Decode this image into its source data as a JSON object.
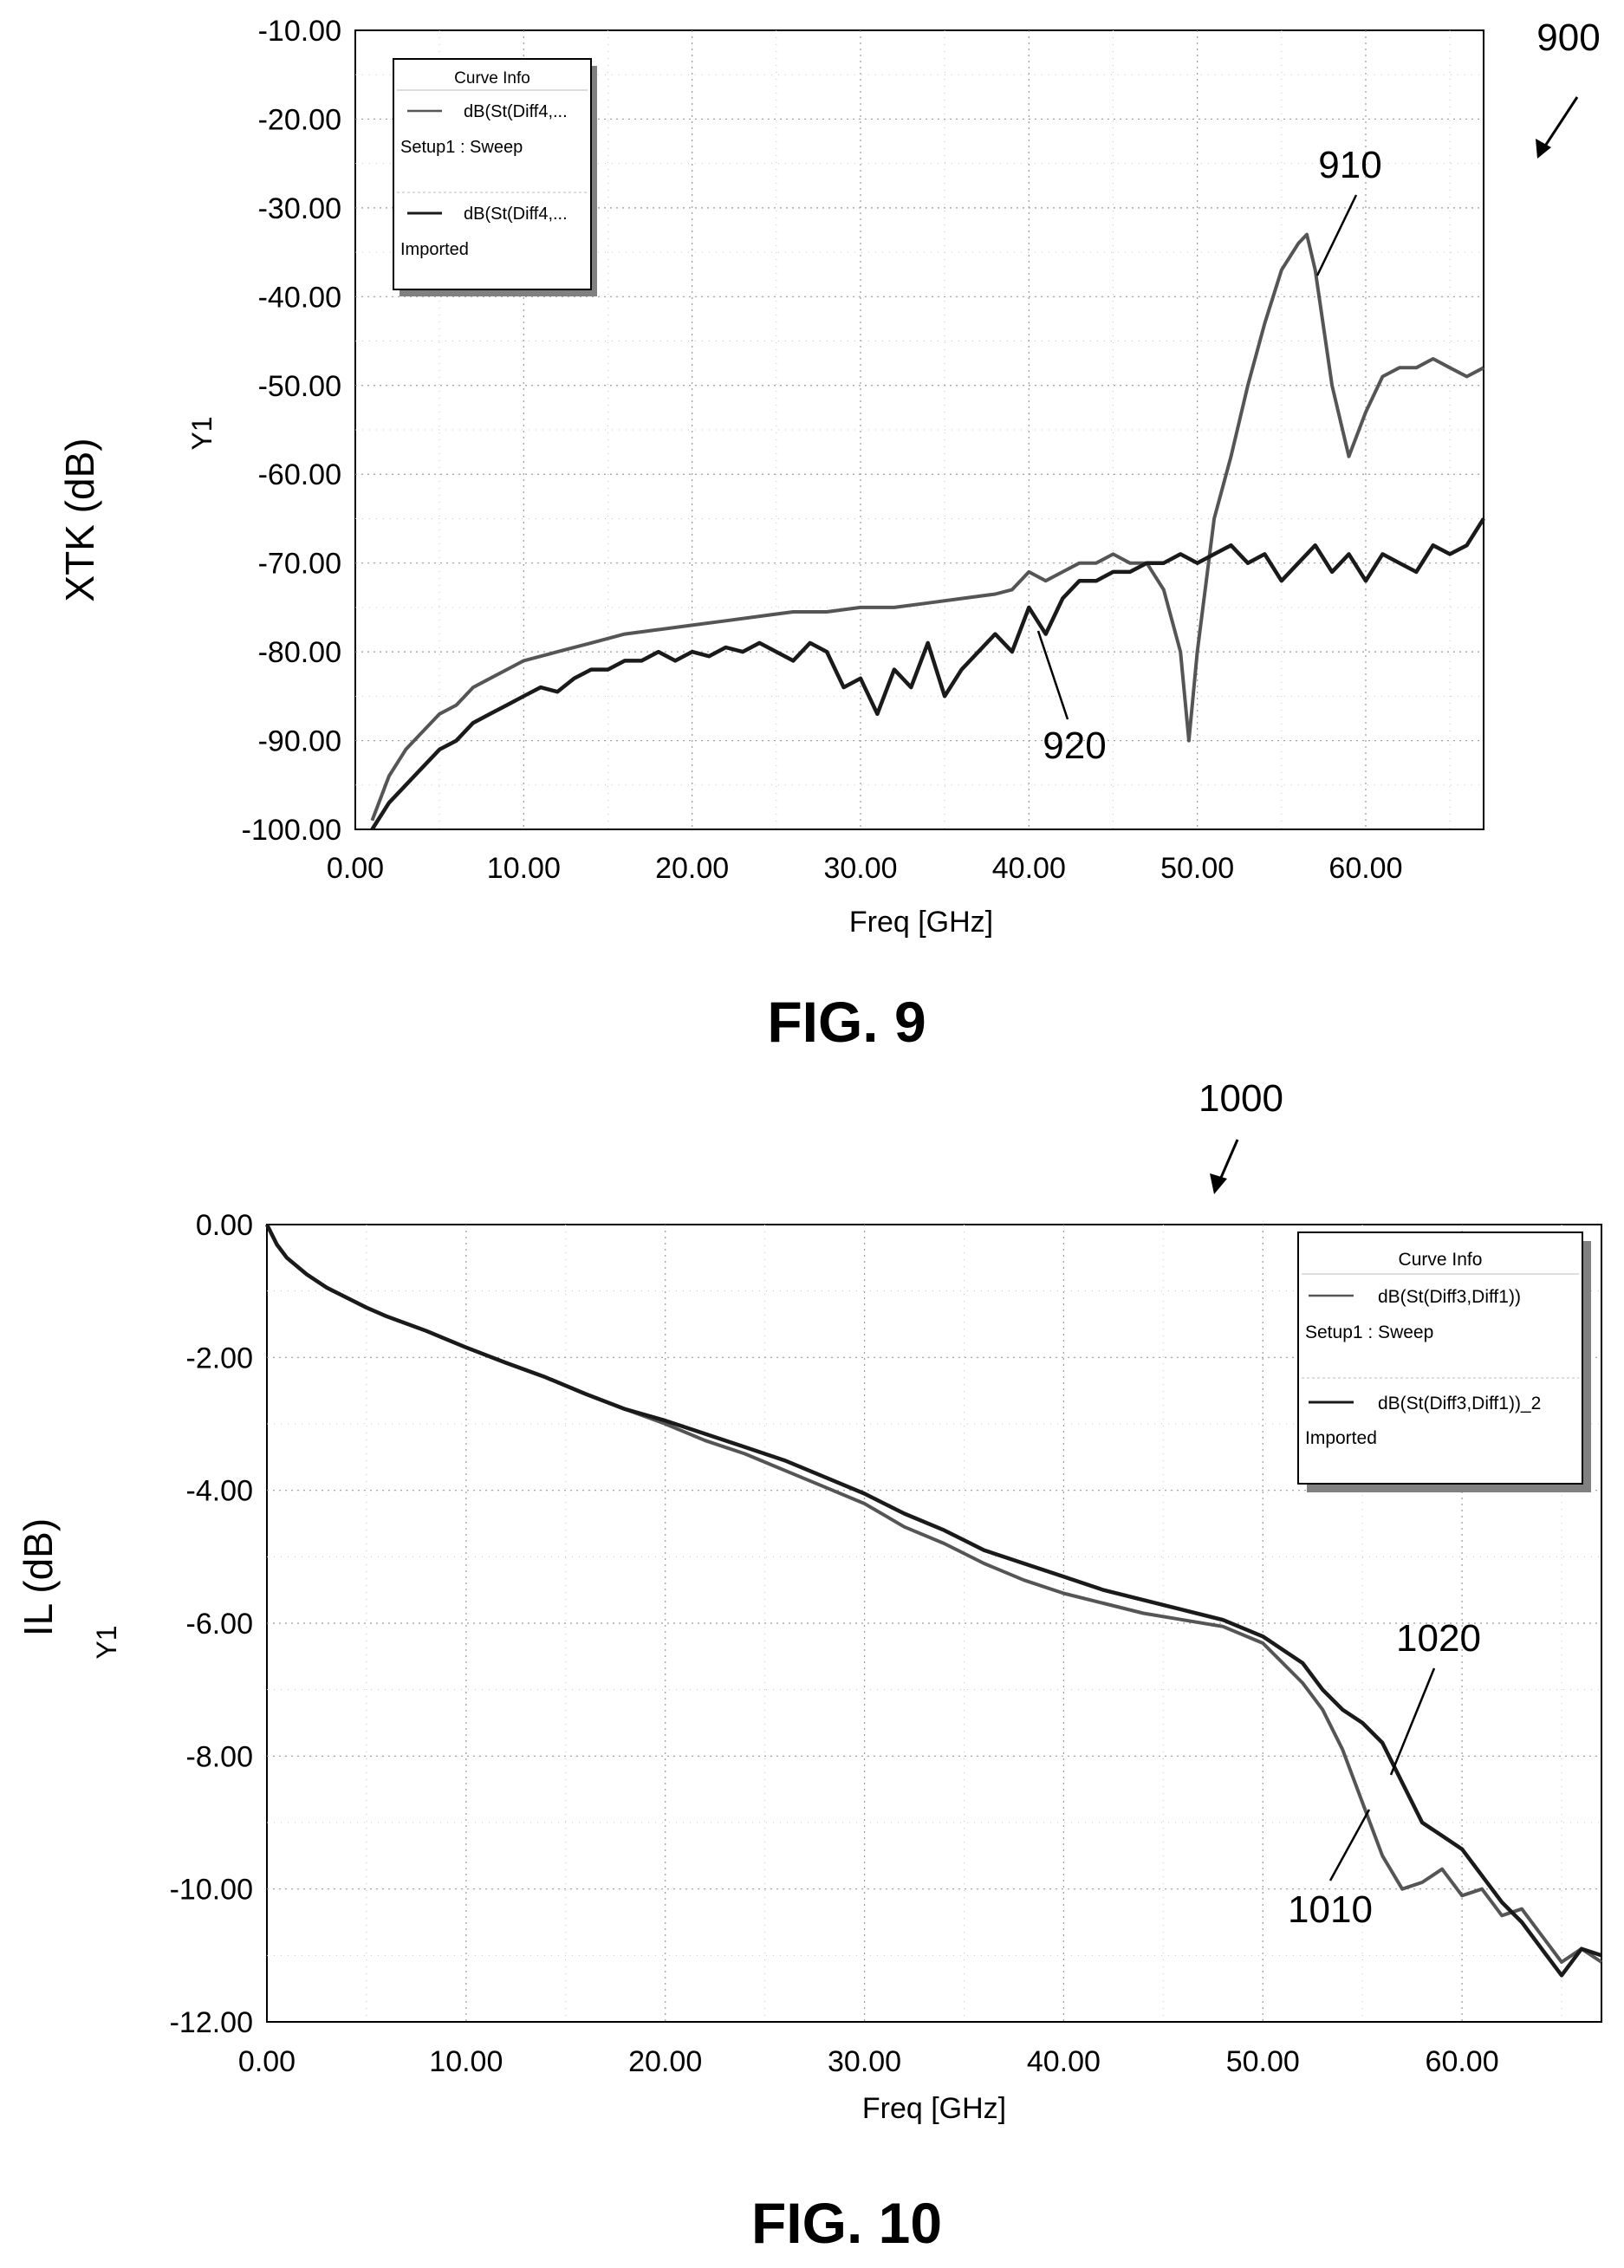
{
  "figures": [
    {
      "ref": "900",
      "caption": "FIG. 9",
      "ylabel": "XTK (dB)",
      "ylabel2": "Y1",
      "xlabel": "Freq [GHz]",
      "legend": {
        "title": "Curve Info",
        "entries": [
          {
            "name": "dB(St(Diff4,...",
            "source": "Setup1 : Sweep"
          },
          {
            "name": "dB(St(Diff4,...",
            "source": "Imported"
          }
        ]
      },
      "annotations": [
        {
          "label": "910"
        },
        {
          "label": "920"
        }
      ]
    },
    {
      "ref": "1000",
      "caption": "FIG. 10",
      "ylabel": "IL (dB)",
      "ylabel2": "Y1",
      "xlabel": "Freq [GHz]",
      "legend": {
        "title": "Curve Info",
        "entries": [
          {
            "name": "dB(St(Diff3,Diff1))",
            "source": "Setup1 : Sweep"
          },
          {
            "name": "dB(St(Diff3,Diff1))_2",
            "source": "Imported"
          }
        ]
      },
      "annotations": [
        {
          "label": "1020"
        },
        {
          "label": "1010"
        }
      ]
    }
  ],
  "chart_data": [
    {
      "type": "line",
      "title": "",
      "xlabel": "Freq [GHz]",
      "ylabel": "XTK (dB)",
      "xlim": [
        0,
        67
      ],
      "ylim": [
        -100,
        -10
      ],
      "xticks": [
        "0.00",
        "10.00",
        "20.00",
        "30.00",
        "40.00",
        "50.00",
        "60.00"
      ],
      "yticks": [
        "-10.00",
        "-20.00",
        "-30.00",
        "-40.00",
        "-50.00",
        "-60.00",
        "-70.00",
        "-80.00",
        "-90.00",
        "-100.00"
      ],
      "grid": true,
      "legend_position": "top-left",
      "series": [
        {
          "name": "dB(St(Diff4,...",
          "color": "#555555",
          "x": [
            1,
            2,
            3,
            4,
            5,
            6,
            7,
            8,
            9,
            10,
            12,
            14,
            16,
            18,
            20,
            22,
            24,
            26,
            28,
            30,
            32,
            34,
            36,
            38,
            39,
            40,
            41,
            42,
            43,
            44,
            45,
            46,
            47,
            48,
            49,
            49.5,
            50,
            51,
            52,
            53,
            54,
            55,
            56,
            56.5,
            57,
            58,
            59,
            60,
            61,
            62,
            63,
            64,
            65,
            66,
            67
          ],
          "y": [
            -99,
            -94,
            -91,
            -89,
            -87,
            -86,
            -84,
            -83,
            -82,
            -81,
            -80,
            -79,
            -78,
            -77.5,
            -77,
            -76.5,
            -76,
            -75.5,
            -75.5,
            -75,
            -75,
            -74.5,
            -74,
            -73.5,
            -73,
            -71,
            -72,
            -71,
            -70,
            -70,
            -69,
            -70,
            -70,
            -73,
            -80,
            -90,
            -80,
            -65,
            -58,
            -50,
            -43,
            -37,
            -34,
            -33,
            -37,
            -50,
            -58,
            -53,
            -49,
            -48,
            -48,
            -47,
            -48,
            -49,
            -48
          ]
        },
        {
          "name": "dB(St(Diff4,...",
          "color": "#1a1a1a",
          "x": [
            1,
            2,
            3,
            4,
            5,
            6,
            7,
            8,
            9,
            10,
            11,
            12,
            13,
            14,
            15,
            16,
            17,
            18,
            19,
            20,
            21,
            22,
            23,
            24,
            25,
            26,
            27,
            28,
            29,
            30,
            31,
            32,
            33,
            34,
            35,
            36,
            37,
            38,
            39,
            40,
            41,
            42,
            43,
            44,
            45,
            46,
            47,
            48,
            49,
            50,
            51,
            52,
            53,
            54,
            55,
            56,
            57,
            58,
            59,
            60,
            61,
            62,
            63,
            64,
            65,
            66,
            67
          ],
          "y": [
            -100,
            -97,
            -95,
            -93,
            -91,
            -90,
            -88,
            -87,
            -86,
            -85,
            -84,
            -84.5,
            -83,
            -82,
            -82,
            -81,
            -81,
            -80,
            -81,
            -80,
            -80.5,
            -79.5,
            -80,
            -79,
            -80,
            -81,
            -79,
            -80,
            -84,
            -83,
            -87,
            -82,
            -84,
            -79,
            -85,
            -82,
            -80,
            -78,
            -80,
            -75,
            -78,
            -74,
            -72,
            -72,
            -71,
            -71,
            -70,
            -70,
            -69,
            -70,
            -69,
            -68,
            -70,
            -69,
            -72,
            -70,
            -68,
            -71,
            -69,
            -72,
            -69,
            -70,
            -71,
            -68,
            -69,
            -68,
            -65
          ]
        }
      ]
    },
    {
      "type": "line",
      "title": "",
      "xlabel": "Freq [GHz]",
      "ylabel": "IL (dB)",
      "xlim": [
        0,
        67
      ],
      "ylim": [
        -12,
        0
      ],
      "xticks": [
        "0.00",
        "10.00",
        "20.00",
        "30.00",
        "40.00",
        "50.00",
        "60.00"
      ],
      "yticks": [
        "0.00",
        "-2.00",
        "-4.00",
        "-6.00",
        "-8.00",
        "-10.00",
        "-12.00"
      ],
      "grid": true,
      "legend_position": "top-right",
      "series": [
        {
          "name": "dB(St(Diff3,Diff1))",
          "color": "#555555",
          "x": [
            0,
            0.5,
            1,
            2,
            3,
            4,
            5,
            6,
            8,
            10,
            12,
            14,
            16,
            18,
            20,
            22,
            24,
            26,
            28,
            30,
            32,
            34,
            36,
            38,
            40,
            42,
            44,
            46,
            48,
            50,
            52,
            53,
            54,
            55,
            56,
            57,
            58,
            59,
            60,
            61,
            62,
            63,
            64,
            65,
            66,
            67
          ],
          "y": [
            0,
            -0.3,
            -0.5,
            -0.75,
            -0.95,
            -1.1,
            -1.25,
            -1.38,
            -1.6,
            -1.85,
            -2.08,
            -2.3,
            -2.55,
            -2.78,
            -3.0,
            -3.25,
            -3.45,
            -3.7,
            -3.95,
            -4.2,
            -4.55,
            -4.8,
            -5.1,
            -5.35,
            -5.55,
            -5.7,
            -5.85,
            -5.95,
            -6.05,
            -6.3,
            -6.9,
            -7.3,
            -7.9,
            -8.7,
            -9.5,
            -10.0,
            -9.9,
            -9.7,
            -10.1,
            -10.0,
            -10.4,
            -10.3,
            -10.7,
            -11.1,
            -10.9,
            -11.1
          ]
        },
        {
          "name": "dB(St(Diff3,Diff1))_2",
          "color": "#1a1a1a",
          "x": [
            0,
            0.5,
            1,
            2,
            3,
            4,
            5,
            6,
            8,
            10,
            12,
            14,
            16,
            18,
            20,
            22,
            24,
            26,
            28,
            30,
            32,
            34,
            36,
            38,
            40,
            42,
            44,
            46,
            48,
            50,
            52,
            53,
            54,
            55,
            56,
            57,
            58,
            59,
            60,
            61,
            62,
            63,
            64,
            65,
            66,
            67
          ],
          "y": [
            0,
            -0.3,
            -0.5,
            -0.75,
            -0.95,
            -1.1,
            -1.25,
            -1.38,
            -1.6,
            -1.85,
            -2.08,
            -2.3,
            -2.55,
            -2.78,
            -2.95,
            -3.15,
            -3.35,
            -3.55,
            -3.8,
            -4.05,
            -4.35,
            -4.6,
            -4.9,
            -5.1,
            -5.3,
            -5.5,
            -5.65,
            -5.8,
            -5.95,
            -6.2,
            -6.6,
            -7.0,
            -7.3,
            -7.5,
            -7.8,
            -8.4,
            -9.0,
            -9.2,
            -9.4,
            -9.8,
            -10.2,
            -10.5,
            -10.9,
            -11.3,
            -10.9,
            -11.0
          ]
        }
      ]
    }
  ]
}
